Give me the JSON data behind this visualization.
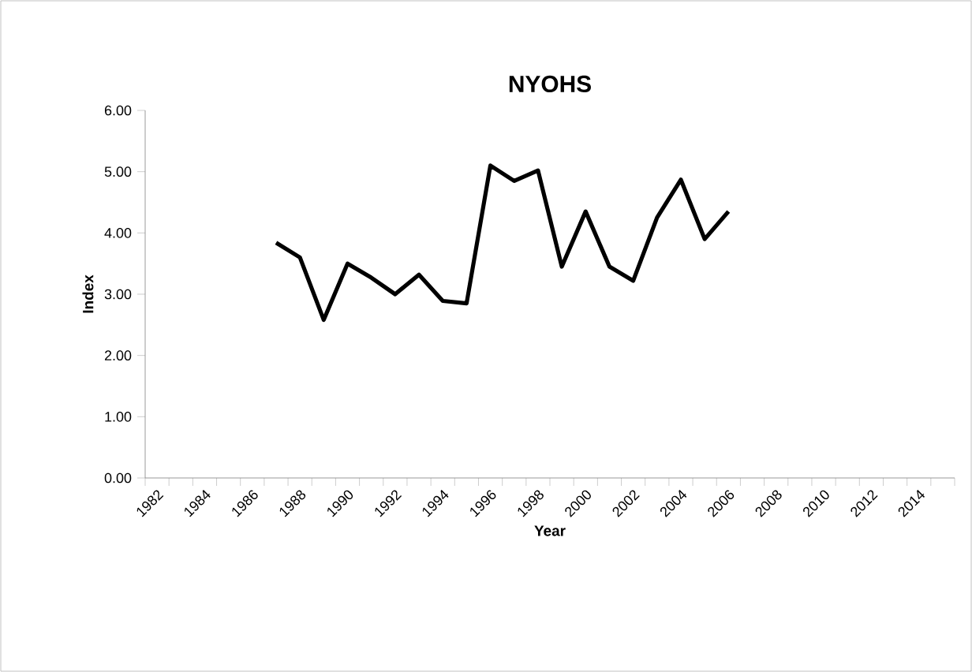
{
  "chart_data": {
    "type": "line",
    "title": "NYOHS",
    "xlabel": "Year",
    "ylabel": "Index",
    "categories": [
      "1982",
      null,
      "1984",
      null,
      "1986",
      null,
      "1988",
      null,
      "1990",
      null,
      "1992",
      null,
      "1994",
      null,
      "1996",
      null,
      "1998",
      null,
      "2000",
      null,
      "2002",
      null,
      "2004",
      null,
      "2006",
      null,
      "2008",
      null,
      "2010",
      null,
      "2012",
      null,
      "2014",
      null
    ],
    "series": [
      {
        "color": "#000000",
        "values": [
          null,
          null,
          null,
          null,
          null,
          3.84,
          3.6,
          2.58,
          3.5,
          3.27,
          3.0,
          3.32,
          2.89,
          2.85,
          5.1,
          4.85,
          5.02,
          3.45,
          4.35,
          3.45,
          3.22,
          4.25,
          4.87,
          3.9,
          4.35,
          null,
          null,
          null,
          null,
          null,
          null,
          null,
          null,
          null
        ]
      }
    ],
    "ylim": [
      0,
      6
    ],
    "yticks": [
      {
        "value": 0,
        "label": "0.00"
      },
      {
        "value": 1,
        "label": "1.00"
      },
      {
        "value": 2,
        "label": "2.00"
      },
      {
        "value": 3,
        "label": "3.00"
      },
      {
        "value": 4,
        "label": "4.00"
      },
      {
        "value": 5,
        "label": "5.00"
      },
      {
        "value": 6,
        "label": "6.00"
      }
    ],
    "grid": false,
    "legend": false,
    "marker": "none",
    "line_style": "solid"
  }
}
